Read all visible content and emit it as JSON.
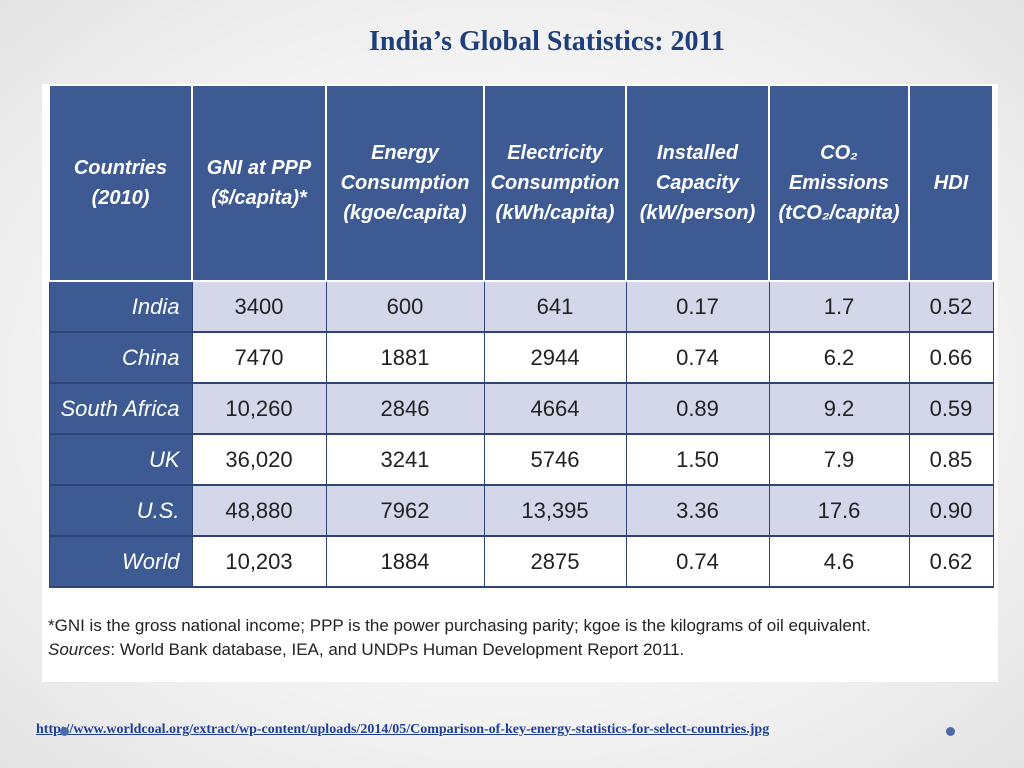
{
  "slide": {
    "title": "India’s Global Statistics: 2011",
    "source_url": "http://www.worldcoal.org/extract/wp-content/uploads/2014/05/Comparison-of-key-energy-statistics-for-select-countries.jpg"
  },
  "table": {
    "headers": [
      "Countries (2010)",
      "GNI at PPP ($/capita)*",
      "Energy Consumption (kgoe/capita)",
      "Electricity Consumption (kWh/capita)",
      "Installed Capacity (kW/person)",
      "CO₂ Emissions (tCO₂/capita)",
      "HDI"
    ],
    "rows": [
      [
        "India",
        "3400",
        "600",
        "641",
        "0.17",
        "1.7",
        "0.52"
      ],
      [
        "China",
        "7470",
        "1881",
        "2944",
        "0.74",
        "6.2",
        "0.66"
      ],
      [
        "South Africa",
        "10,260",
        "2846",
        "4664",
        "0.89",
        "9.2",
        "0.59"
      ],
      [
        "UK",
        "36,020",
        "3241",
        "5746",
        "1.50",
        "7.9",
        "0.85"
      ],
      [
        "U.S.",
        "48,880",
        "7962",
        "13,395",
        "3.36",
        "17.6",
        "0.90"
      ],
      [
        "World",
        "10,203",
        "1884",
        "2875",
        "0.74",
        "4.6",
        "0.62"
      ]
    ]
  },
  "footnote": {
    "line1": "*GNI is the gross national income; PPP is the power purchasing parity; kgoe is the kilograms of oil equivalent.",
    "sources_label": "Sources",
    "sources_text": ": World Bank database, IEA, and UNDPs Human Development Report 2011."
  },
  "colors": {
    "header_bg": "#3e5a92",
    "row_shaded": "#d4d7ea",
    "title": "#1f3f7a",
    "link": "#1f3f9a"
  }
}
